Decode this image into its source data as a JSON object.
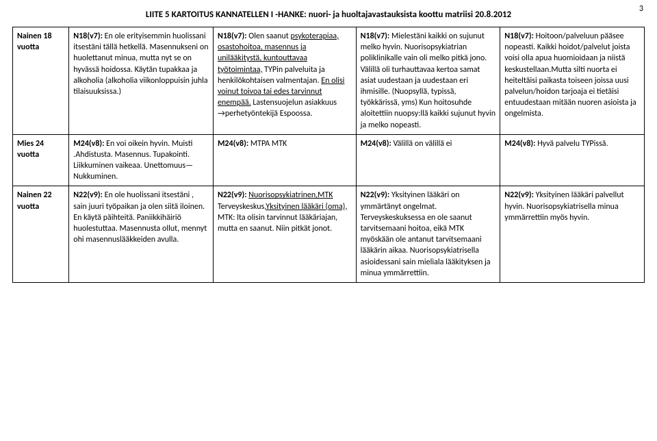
{
  "header": {
    "title": "LIITE 5 KARTOITUS KANNATELLEN I -HANKE: nuori- ja huoltajavastauksista koottu matriisi  20.8.2012",
    "page": "3"
  },
  "columns": {
    "c0_width": 82,
    "c1_width": 210,
    "c2_width": 208,
    "c3_width": 210,
    "c4_width": 210
  },
  "rows": [
    {
      "label": "Nainen 18 vuotta",
      "cells": [
        {
          "code": "N18(v7):",
          "parts": [
            {
              "t": " En ole erityisemmin huolissani itsestäni tällä hetkellä. Masennukseni on huolettanut minua, mutta nyt se on hyvässä hoidossa. Käytän tupakkaa ja alkoholia (alkoholia viikonloppuisin juhla tilaisuuksissa.)"
            }
          ]
        },
        {
          "code": "N18(v7):",
          "parts": [
            {
              "t": " Olen saanut "
            },
            {
              "t": "psykoterapiaa, osastohoitoa, masennus ja unilääkitystä, kuntouttavaa työtoimintaa,",
              "u": true
            },
            {
              "t": " TYPin palveluita ja henkilökohtaisen valmentajan. "
            },
            {
              "t": "En olisi voinut toivoa tai edes tarvinnut enempää.",
              "u": true
            },
            {
              "t": " Lastensuojelun asiakkuus "
            },
            {
              "arrow": true
            },
            {
              "t": "perhetyöntekijä Espoossa."
            }
          ]
        },
        {
          "code": "N18(v7):",
          "parts": [
            {
              "t": " Mielestäni kaikki on sujunut melko hyvin. Nuorisopsykiatrian poliklinikalle vain oli melko pitkä jono. Välillä oli turhauttavaa kertoa samat asiat uudestaan ja uudestaan eri ihmisille. (Nuopsyllä, typissä, työkkärissä, yms) Kun hoitosuhde aloitettiin nuopsy:llä kaikki sujunut hyvin ja melko nopeasti."
            }
          ]
        },
        {
          "code": "N18(v7):",
          "parts": [
            {
              "t": " Hoitoon/palveluun pääsee nopeasti. Kaikki hoidot/palvelut joista voisi olla apua huomioidaan ja niistä keskustellaan.Mutta silti nuorta ei heiteltäisi paikasta toiseen joissa uusi palvelun/hoidon tarjoaja ei tietäisi entuudestaan mitään nuoren asioista ja ongelmista."
            }
          ]
        }
      ]
    },
    {
      "label": "Mies 24 vuotta",
      "cells": [
        {
          "code": "M24(v8):",
          "parts": [
            {
              "t": " En voi oikein hyvin. Muisti .Ahdistusta. Masennus.  Tupakointi. Liikkuminen vaikeaa. Unettomuus—Nukkuminen."
            }
          ]
        },
        {
          "code": "M24(v8):",
          "parts": [
            {
              "t": " MTPA   MTK"
            }
          ]
        },
        {
          "code": "M24(v8):",
          "parts": [
            {
              "t": " Välillä on välillä ei"
            }
          ]
        },
        {
          "code": "M24(v8):",
          "parts": [
            {
              "t": " Hyvä palvelu TYPissä."
            }
          ]
        }
      ]
    },
    {
      "label": "Nainen 22 vuotta",
      "cells": [
        {
          "code": "N22(v9):",
          "parts": [
            {
              "t": " En ole huolissani itsestäni , sain juuri työpaikan ja olen siitä iloinen. En käytä päihteitä. Paniikkihäiriö huolestuttaa. Masennusta ollut, mennyt ohi masennuslääkkeiden avulla."
            }
          ]
        },
        {
          "code": "N22(v9):",
          "parts": [
            {
              "t": " "
            },
            {
              "t": "Nuorisopsykiatrinen,MTK",
              "u": true
            },
            {
              "t": " Terveyskeskus,"
            },
            {
              "t": "Yksityinen lääkäri (oma),",
              "u": true
            },
            {
              "t": " MTK: lta olisin tarvinnut lääkäriajan, mutta en saanut. Niin pitkät jonot."
            }
          ]
        },
        {
          "code": "N22(v9):",
          "parts": [
            {
              "t": " Yksityinen lääkäri on ymmärtänyt ongelmat. Terveyskeskuksessa en ole saanut tarvitsemaani hoitoa, eikä MTK myöskään ole antanut tarvitsemaani lääkärin aikaa. Nuorisopsykiatrisella asioidessani sain mieliala lääkityksen ja minua ymmärrettiin."
            }
          ]
        },
        {
          "code": "N22(v9):",
          "parts": [
            {
              "t": " Yksityinen lääkäri palvellut hyvin. Nuorisopsykiatrisella minua ymmärrettiin myös hyvin."
            }
          ]
        }
      ]
    }
  ]
}
